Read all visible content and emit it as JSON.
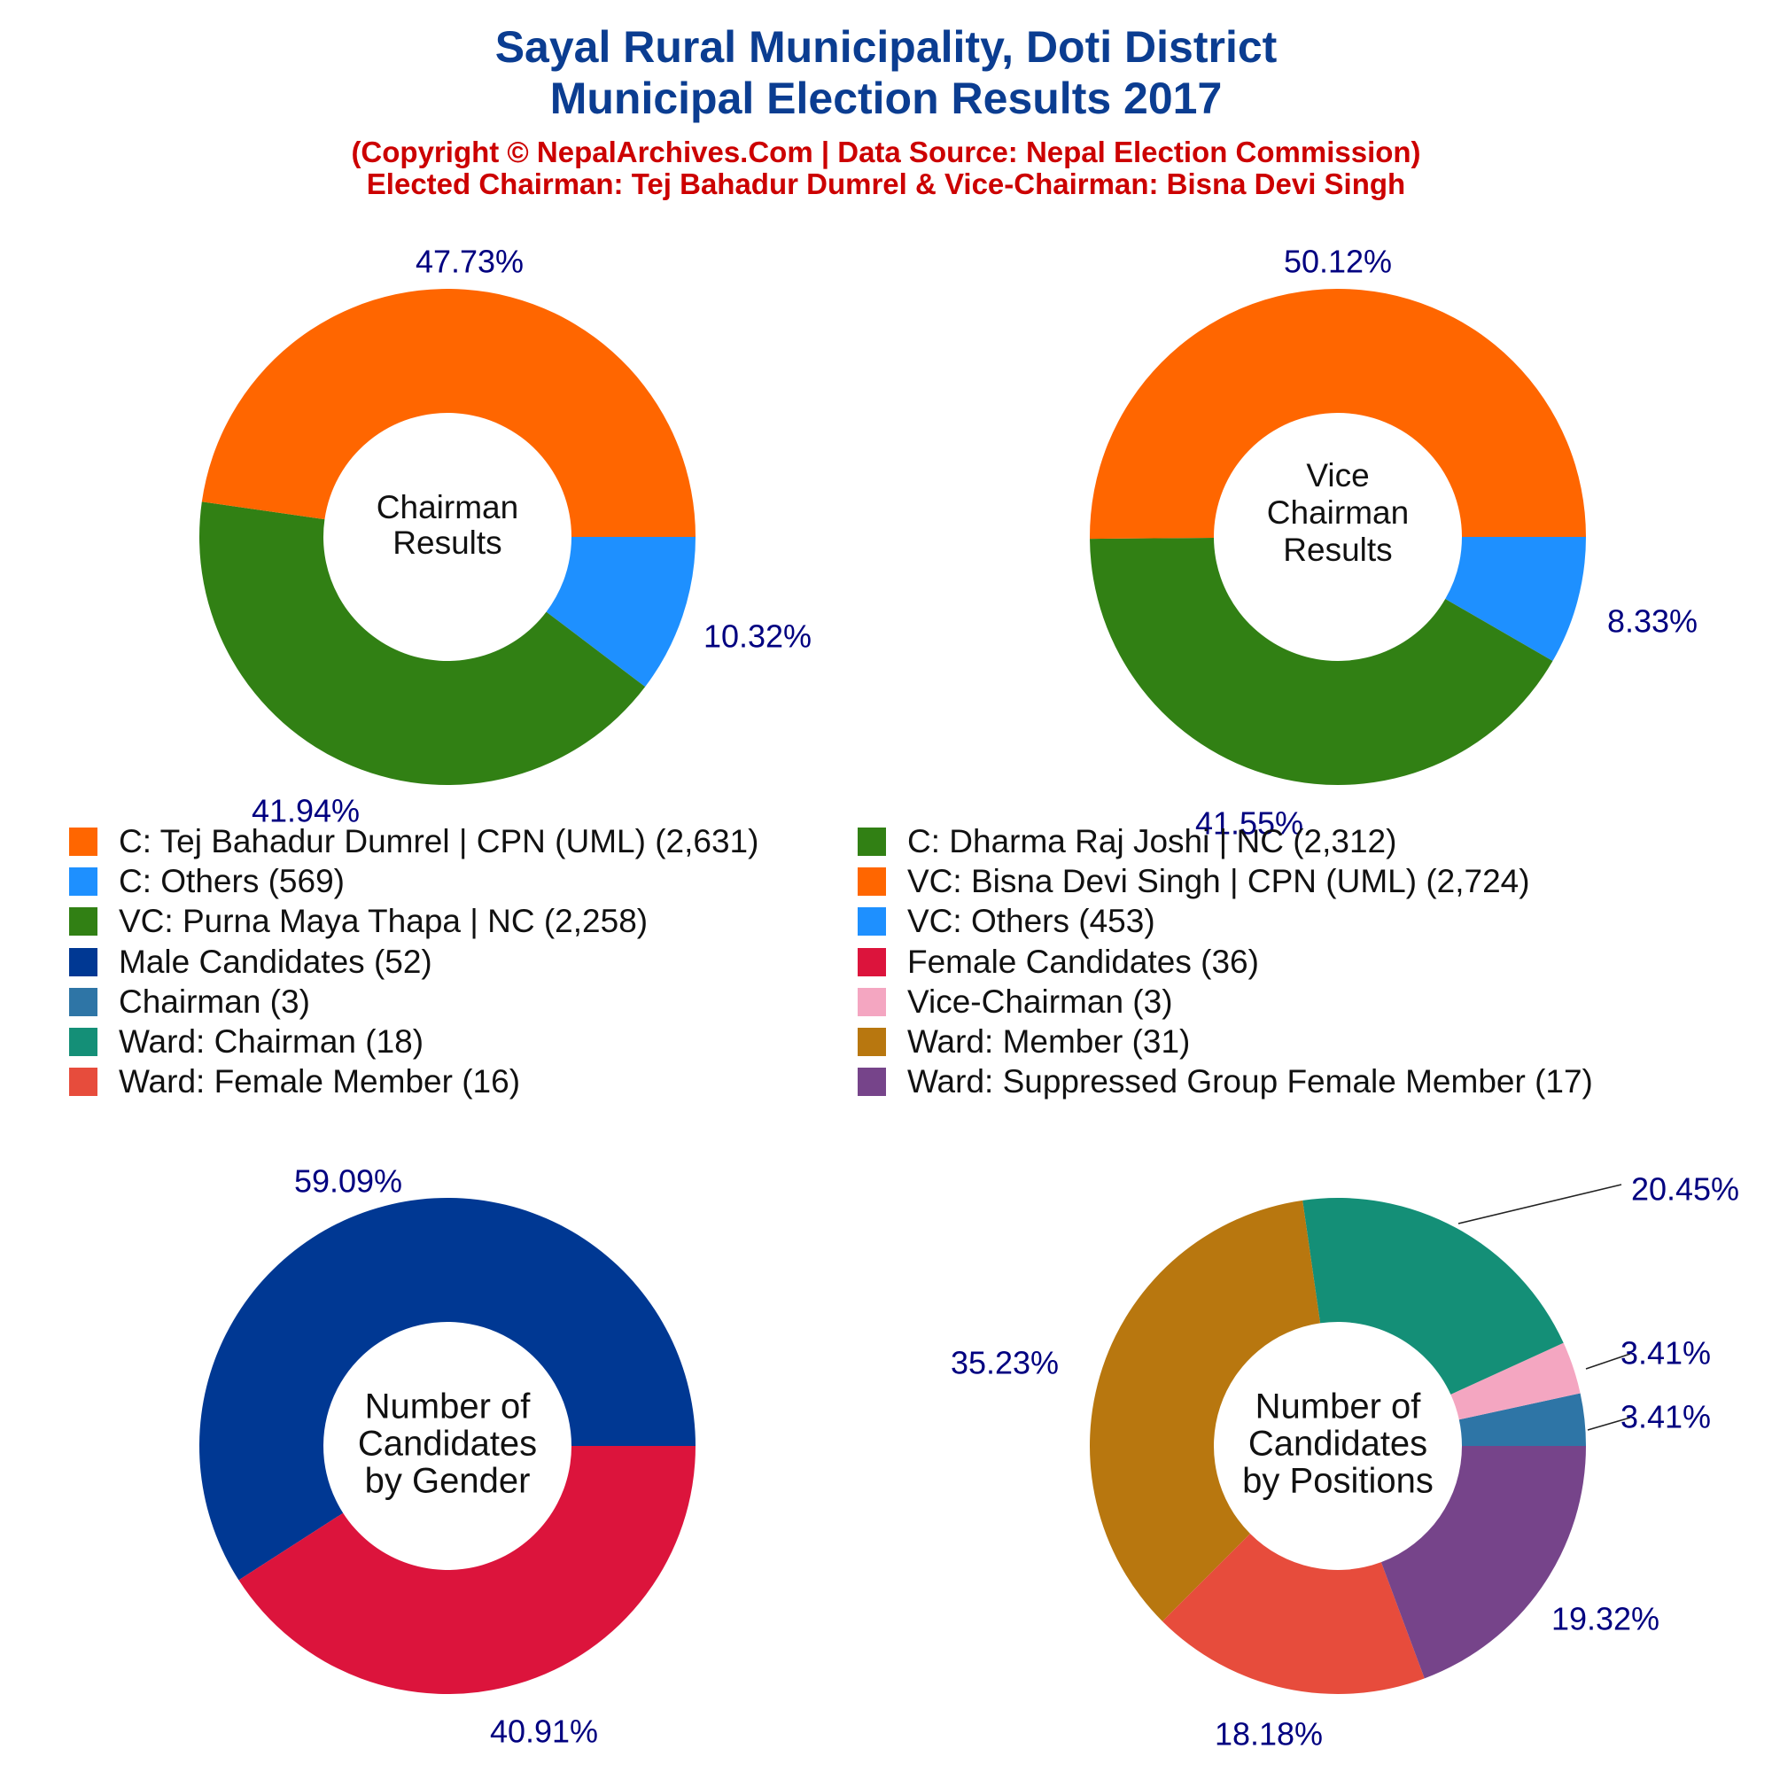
{
  "title_line1": "Sayal Rural Municipality, Doti District",
  "title_line2": "Municipal Election Results 2017",
  "subtitle_line1": "(Copyright © NepalArchives.Com | Data Source: Nepal Election Commission)",
  "subtitle_line2": "Elected Chairman: Tej Bahadur Dumrel & Vice-Chairman: Bisna Devi Singh",
  "colors": {
    "title": "#0b3d91",
    "subtitle": "#cc0000",
    "pct_label": "#000080"
  },
  "legend": [
    {
      "label": "C: Tej Bahadur Dumrel | CPN (UML) (2,631)",
      "color": "#ff6600"
    },
    {
      "label": "C: Dharma Raj Joshi | NC (2,312)",
      "color": "#318014"
    },
    {
      "label": "C: Others (569)",
      "color": "#1e90ff"
    },
    {
      "label": "VC: Bisna Devi Singh | CPN (UML) (2,724)",
      "color": "#ff6600"
    },
    {
      "label": "VC: Purna Maya Thapa | NC (2,258)",
      "color": "#318014"
    },
    {
      "label": "VC: Others (453)",
      "color": "#1e90ff"
    },
    {
      "label": "Male Candidates (52)",
      "color": "#003893"
    },
    {
      "label": "Female Candidates (36)",
      "color": "#dc143c"
    },
    {
      "label": "Chairman (3)",
      "color": "#2e75a6"
    },
    {
      "label": "Vice-Chairman (3)",
      "color": "#f4a6c1"
    },
    {
      "label": "Ward: Chairman (18)",
      "color": "#148f77"
    },
    {
      "label": "Ward: Member (31)",
      "color": "#b8770f"
    },
    {
      "label": "Ward: Female Member (16)",
      "color": "#e74c3c"
    },
    {
      "label": "Ward: Suppressed Group Female Member (17)",
      "color": "#76448a"
    }
  ],
  "chart_data": [
    {
      "type": "pie",
      "center_label": [
        "Chairman",
        "Results"
      ],
      "slices": [
        {
          "name": "C: Tej Bahadur Dumrel | CPN (UML)",
          "value": 2631,
          "pct": "47.73%",
          "color": "#ff6600"
        },
        {
          "name": "C: Dharma Raj Joshi | NC",
          "value": 2312,
          "pct": "41.94%",
          "color": "#318014"
        },
        {
          "name": "C: Others",
          "value": 569,
          "pct": "10.32%",
          "color": "#1e90ff"
        }
      ]
    },
    {
      "type": "pie",
      "center_label": [
        "Vice",
        "Chairman",
        "Results"
      ],
      "slices": [
        {
          "name": "VC: Bisna Devi Singh | CPN (UML)",
          "value": 2724,
          "pct": "50.12%",
          "color": "#ff6600"
        },
        {
          "name": "VC: Purna Maya Thapa | NC",
          "value": 2258,
          "pct": "41.55%",
          "color": "#318014"
        },
        {
          "name": "VC: Others",
          "value": 453,
          "pct": "8.33%",
          "color": "#1e90ff"
        }
      ]
    },
    {
      "type": "pie",
      "center_label": [
        "Number of",
        "Candidates",
        "by Gender"
      ],
      "slices": [
        {
          "name": "Male Candidates",
          "value": 52,
          "pct": "59.09%",
          "color": "#003893"
        },
        {
          "name": "Female Candidates",
          "value": 36,
          "pct": "40.91%",
          "color": "#dc143c"
        }
      ]
    },
    {
      "type": "pie",
      "center_label": [
        "Number of",
        "Candidates",
        "by Positions"
      ],
      "slices": [
        {
          "name": "Chairman",
          "value": 3,
          "pct": "3.41%",
          "color": "#2e75a6"
        },
        {
          "name": "Vice-Chairman",
          "value": 3,
          "pct": "3.41%",
          "color": "#f4a6c1"
        },
        {
          "name": "Ward: Chairman",
          "value": 18,
          "pct": "20.45%",
          "color": "#148f77"
        },
        {
          "name": "Ward: Member",
          "value": 31,
          "pct": "35.23%",
          "color": "#b8770f"
        },
        {
          "name": "Ward: Female Member",
          "value": 16,
          "pct": "18.18%",
          "color": "#e74c3c"
        },
        {
          "name": "Ward: Suppressed Group Female Member",
          "value": 17,
          "pct": "19.32%",
          "color": "#76448a"
        }
      ]
    }
  ]
}
